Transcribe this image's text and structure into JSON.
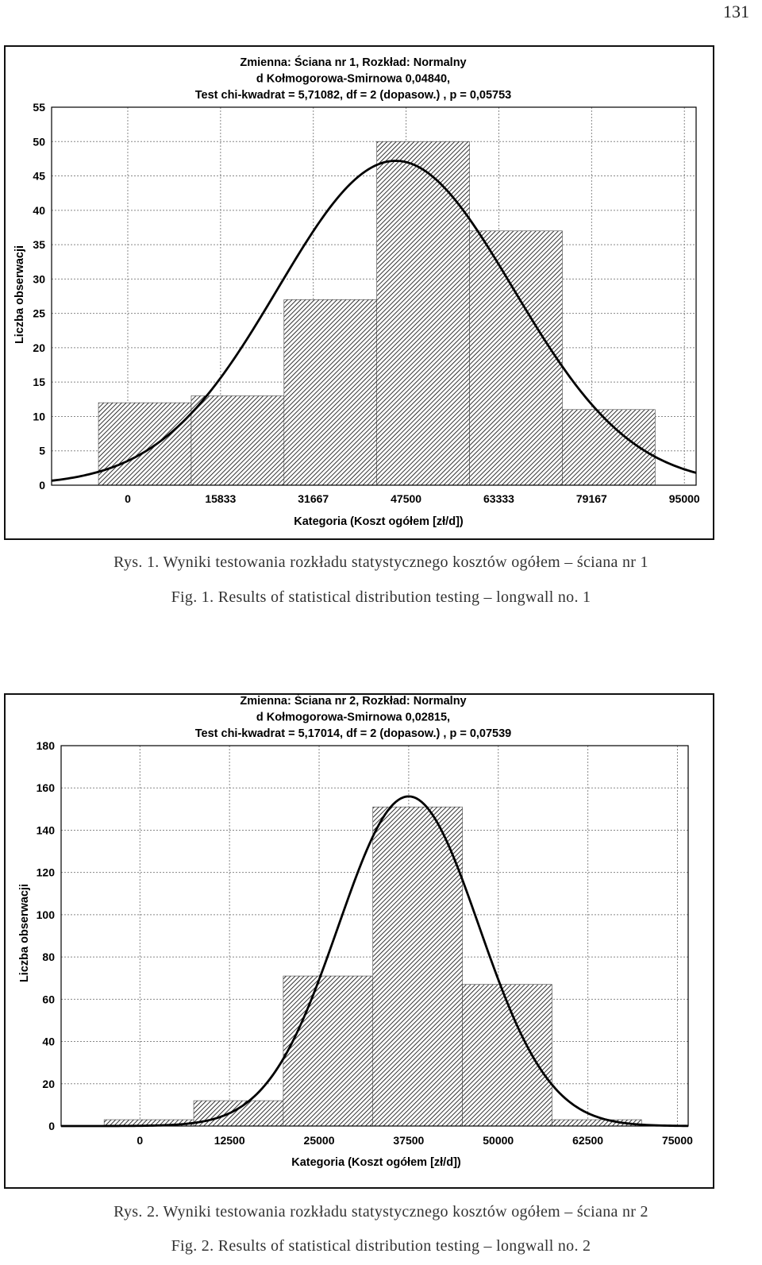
{
  "page_number": "131",
  "figures": [
    {
      "caption_pl": "Rys. 1. Wyniki testowania rozkładu statystycznego kosztów ogółem – ściana nr 1",
      "caption_en": "Fig. 1. Results of statistical distribution testing – longwall no. 1"
    },
    {
      "caption_pl": "Rys. 2. Wyniki testowania rozkładu statystycznego kosztów ogółem – ściana nr 2",
      "caption_en": "Fig. 2. Results of statistical distribution testing – longwall no. 2"
    }
  ],
  "chart_data": [
    {
      "type": "bar",
      "title_lines": [
        "Zmienna:  Ściana nr 1, Rozkład: Normalny",
        "d Kołmogorowa-Smirnowa 0,04840,",
        "Test chi-kwadrat = 5,71082, df = 2 (dopasow.) , p = 0,05753"
      ],
      "xlabel": "Kategoria (Koszt ogółem [zł/d])",
      "ylabel": "Liczba obserwacji",
      "xticks": [
        0,
        15833,
        31667,
        47500,
        63333,
        79167,
        95000
      ],
      "xtick_labels": [
        "0",
        "15833",
        "31667",
        "47500",
        "63333",
        "79167",
        "95000"
      ],
      "xlim": [
        -13000,
        97000
      ],
      "yticks": [
        0,
        5,
        10,
        15,
        20,
        25,
        30,
        35,
        40,
        45,
        50,
        55
      ],
      "ylim": [
        0,
        55
      ],
      "grid": true,
      "bin_edges": [
        -5000,
        10833,
        26667,
        42500,
        58333,
        74167,
        90000
      ],
      "values": [
        12,
        13,
        27,
        50,
        37,
        11
      ],
      "fitted_curve": {
        "distribution": "normal",
        "mean": 45700,
        "peak": 47.2
      },
      "bar_fill": "diagonal-hatch"
    },
    {
      "type": "bar",
      "title_lines": [
        "Zmienna:  Ściana nr 2, Rozkład: Normalny",
        "d Kołmogorowa-Smirnowa 0,02815,",
        "Test chi-kwadrat = 5,17014, df = 2 (dopasow.) , p = 0,07539"
      ],
      "xlabel": "Kategoria (Koszt ogółem [zł/d])",
      "ylabel": "Liczba obserwacji",
      "xticks": [
        0,
        12500,
        25000,
        37500,
        50000,
        62500,
        75000
      ],
      "xtick_labels": [
        "0",
        "12500",
        "25000",
        "37500",
        "50000",
        "62500",
        "75000"
      ],
      "xlim": [
        -11000,
        76500
      ],
      "yticks": [
        0,
        20,
        40,
        60,
        80,
        100,
        120,
        140,
        160,
        180
      ],
      "ylim": [
        0,
        180
      ],
      "grid": true,
      "bin_edges": [
        -5000,
        7500,
        20000,
        32500,
        45000,
        57500,
        70000
      ],
      "values": [
        3,
        12,
        71,
        151,
        67,
        3
      ],
      "fitted_curve": {
        "distribution": "normal",
        "mean": 37500,
        "peak": 156
      },
      "bar_fill": "diagonal-hatch"
    }
  ]
}
